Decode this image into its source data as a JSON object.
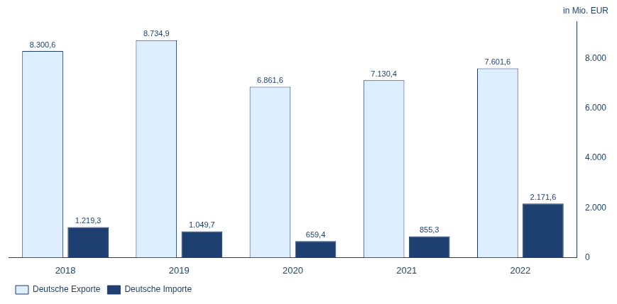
{
  "chart_data": {
    "type": "bar",
    "categories": [
      "2018",
      "2019",
      "2020",
      "2021",
      "2022"
    ],
    "series": [
      {
        "name": "Deutsche Exporte",
        "color": "#ddeeff",
        "values": [
          8300.6,
          8734.9,
          6861.6,
          7130.4,
          7601.6
        ],
        "value_labels": [
          "8.300,6",
          "8.734,9",
          "6.861,6",
          "7.130,4",
          "7.601,6"
        ]
      },
      {
        "name": "Deutsche Importe",
        "color": "#1e4070",
        "values": [
          1219.3,
          1049.7,
          659.4,
          855.3,
          2171.6
        ],
        "value_labels": [
          "1.219,3",
          "1.049,7",
          "659,4",
          "855,3",
          "2.171,6"
        ]
      }
    ],
    "y_label": "in Mio. EUR",
    "ylim": [
      0,
      9500
    ],
    "yticks": [
      0,
      {
        "value": 2000,
        "label": "2.000"
      },
      {
        "value": 4000,
        "label": "4.000"
      },
      {
        "value": 6000,
        "label": "6.000"
      },
      {
        "value": 8000,
        "label": "8.000"
      }
    ],
    "grid": false,
    "legend": "lower left",
    "data_labels": true
  }
}
